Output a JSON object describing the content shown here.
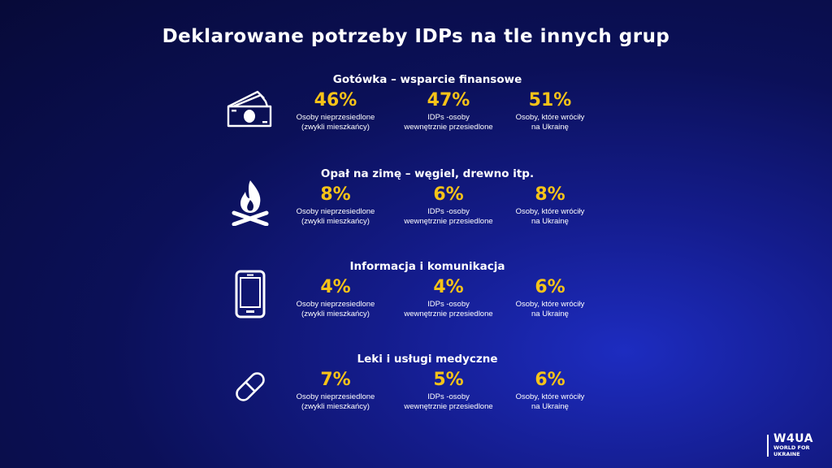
{
  "title": "Deklarowane potrzeby IDPs na tle innych grup",
  "sections": [
    {
      "title": "Gotówka – wsparcie finansowe",
      "icon": "money-icon",
      "stats": [
        {
          "value": "46%",
          "label": "Osoby nieprzesiedlone\n(zwykli mieszkańcy)"
        },
        {
          "value": "47%",
          "label": "IDPs -osoby\nwewnętrznie przesiedlone"
        },
        {
          "value": "51%",
          "label": "Osoby, które wróciły\nna Ukrainę"
        }
      ]
    },
    {
      "title": "Opał na zimę – węgiel, drewno itp.",
      "icon": "campfire-icon",
      "stats": [
        {
          "value": "8%",
          "label": "Osoby nieprzesiedlone\n(zwykli mieszkańcy)"
        },
        {
          "value": "6%",
          "label": "IDPs -osoby\nwewnętrznie przesiedlone"
        },
        {
          "value": "8%",
          "label": "Osoby, które wróciły\nna Ukrainę"
        }
      ]
    },
    {
      "title": "Informacja i komunikacja",
      "icon": "smartphone-icon",
      "stats": [
        {
          "value": "4%",
          "label": "Osoby nieprzesiedlone\n(zwykli mieszkańcy)"
        },
        {
          "value": "4%",
          "label": "IDPs -osoby\nwewnętrznie przesiedlone"
        },
        {
          "value": "6%",
          "label": "Osoby, które wróciły\nna Ukrainę"
        }
      ]
    },
    {
      "title": "Leki i usługi medyczne",
      "icon": "pill-icon",
      "stats": [
        {
          "value": "7%",
          "label": "Osoby nieprzesiedlone\n(zwykli mieszkańcy)"
        },
        {
          "value": "5%",
          "label": "IDPs -osoby\nwewnętrznie przesiedlone"
        },
        {
          "value": "6%",
          "label": "Osoby, które wróciły\nna Ukrainę"
        }
      ]
    }
  ],
  "logo": {
    "mark": "W4UA",
    "subtitle": "WORLD FOR\nUKRAINE"
  },
  "colors": {
    "accent": "#f7c318",
    "background": "#0b1058",
    "text": "#ffffff"
  }
}
